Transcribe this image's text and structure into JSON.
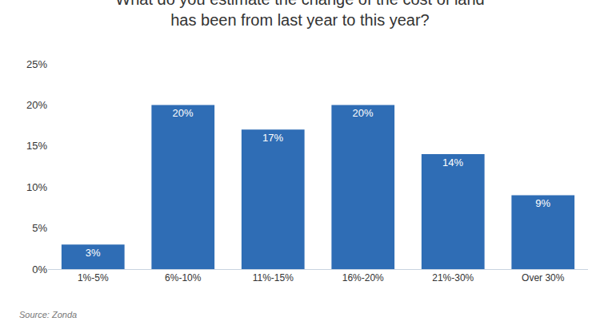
{
  "chart_data": {
    "type": "bar",
    "title": "What do you estimate the change of the cost of land\nhas been from last year to this year?",
    "categories": [
      "1%-5%",
      "6%-10%",
      "11%-15%",
      "16%-20%",
      "21%-30%",
      "Over 30%"
    ],
    "values": [
      3,
      20,
      17,
      20,
      14,
      9
    ],
    "value_labels": [
      "3%",
      "20%",
      "17%",
      "20%",
      "14%",
      "9%"
    ],
    "color": "#2f6db5",
    "ylim": [
      0,
      25
    ],
    "yticks": [
      {
        "value": 0,
        "label": "0%"
      },
      {
        "value": 5,
        "label": "5%"
      },
      {
        "value": 10,
        "label": "10%"
      },
      {
        "value": 15,
        "label": "15%"
      },
      {
        "value": 20,
        "label": "20%"
      },
      {
        "value": 25,
        "label": "25%"
      }
    ],
    "grid": false,
    "data_labels": true,
    "annotations": [
      {
        "text": "Source: Zonda"
      }
    ]
  }
}
